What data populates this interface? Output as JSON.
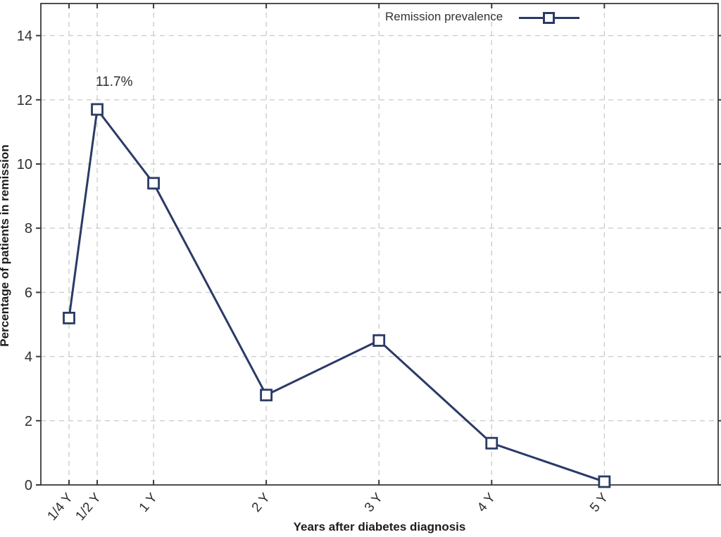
{
  "chart_data": {
    "type": "line",
    "title": "",
    "xlabel": "Years after diabetes diagnosis",
    "ylabel": "Percentage of patients in remission",
    "x": [
      0.25,
      0.5,
      1,
      2,
      3,
      4,
      5
    ],
    "x_tick_labels": [
      "1/4 Y",
      "1/2 Y",
      "1 Y",
      "2 Y",
      "3 Y",
      "4 Y",
      "5 Y"
    ],
    "series": [
      {
        "name": "Remission prevalence",
        "values": [
          5.2,
          11.7,
          9.4,
          2.8,
          4.5,
          1.3,
          0.1
        ]
      }
    ],
    "annotation": {
      "text": "11.7%",
      "x": 0.5,
      "y": 11.7
    },
    "legend": {
      "label": "Remission prevalence",
      "position": "top-right",
      "marker": "open-square"
    },
    "xlim": [
      0,
      6.01
    ],
    "ylim": [
      0,
      15
    ],
    "yticks": [
      0,
      2,
      4,
      6,
      8,
      10,
      12,
      14
    ],
    "grid": "dashed",
    "marker_style": "open-square",
    "colors": {
      "line": "#2b3a67",
      "grid": "#cdcdcd",
      "axis": "#3a3a3a",
      "text": "#2d2d2d"
    }
  }
}
